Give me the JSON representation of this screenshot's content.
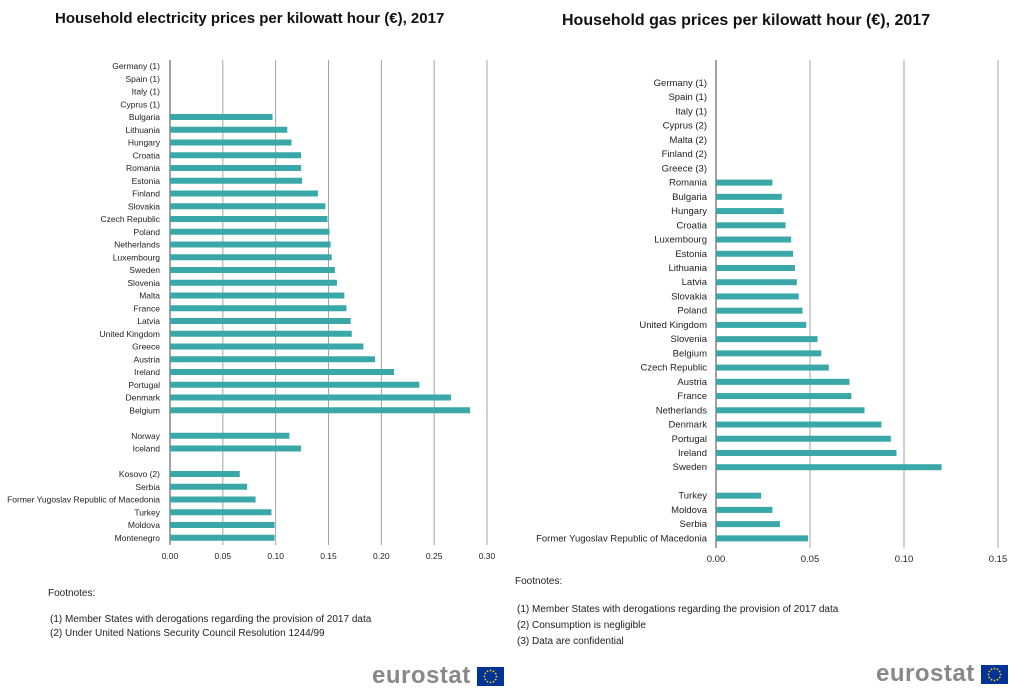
{
  "chart_data": [
    {
      "type": "bar",
      "orientation": "horizontal",
      "title": "Household electricity prices per kilowatt hour (€), 2017",
      "xlabel": "",
      "ylabel": "",
      "xlim": [
        0,
        0.3
      ],
      "ticks": [
        "0.00",
        "0.05",
        "0.10",
        "0.15",
        "0.20",
        "0.25",
        "0.30"
      ],
      "tick_values": [
        0,
        0.05,
        0.1,
        0.15,
        0.2,
        0.25,
        0.3
      ],
      "bar_color": "#3aa8a8",
      "categories": [
        "Germany (1)",
        "Spain (1)",
        "Italy (1)",
        "Cyprus (1)",
        "Bulgaria",
        "Lithuania",
        "Hungary",
        "Croatia",
        "Romania",
        "Estonia",
        "Finland",
        "Slovakia",
        "Czech Republic",
        "Poland",
        "Netherlands",
        "Luxembourg",
        "Sweden",
        "Slovenia",
        "Malta",
        "France",
        "Latvia",
        "United Kingdom",
        "Greece",
        "Austria",
        "Ireland",
        "Portugal",
        "Denmark",
        "Belgium",
        "",
        "Norway",
        "Iceland",
        "",
        "Kosovo (2)",
        "Serbia",
        "Former Yugoslav Republic of Macedonia",
        "Turkey",
        "Moldova",
        "Montenegro"
      ],
      "values": [
        null,
        null,
        null,
        null,
        0.097,
        0.111,
        0.115,
        0.124,
        0.124,
        0.125,
        0.14,
        0.147,
        0.149,
        0.151,
        0.152,
        0.153,
        0.156,
        0.158,
        0.165,
        0.167,
        0.171,
        0.172,
        0.183,
        0.194,
        0.212,
        0.236,
        0.266,
        0.284,
        null,
        0.113,
        0.124,
        null,
        0.066,
        0.073,
        0.081,
        0.096,
        0.099,
        0.099
      ]
    },
    {
      "type": "bar",
      "orientation": "horizontal",
      "title": "Household gas prices per kilowatt hour (€),  2017",
      "xlabel": "",
      "ylabel": "",
      "xlim": [
        0,
        0.15
      ],
      "ticks": [
        "0.00",
        "0.05",
        "0.10",
        "0.15"
      ],
      "tick_values": [
        0,
        0.05,
        0.1,
        0.15
      ],
      "bar_color": "#3aa8a8",
      "categories": [
        "Germany (1)",
        "Spain (1)",
        "Italy (1)",
        "Cyprus (2)",
        "Malta (2)",
        "Finland (2)",
        "Greece (3)",
        "Romania",
        "Bulgaria",
        "Hungary",
        "Croatia",
        "Luxembourg",
        "Estonia",
        "Lithuania",
        "Latvia",
        "Slovakia",
        "Poland",
        "United Kingdom",
        "Slovenia",
        "Belgium",
        "Czech Republic",
        "Austria",
        "France",
        "Netherlands",
        "Denmark",
        "Portugal",
        "Ireland",
        "Sweden",
        "",
        "Turkey",
        "Moldova",
        "Serbia",
        "Former Yugoslav Republic of Macedonia"
      ],
      "values": [
        null,
        null,
        null,
        null,
        null,
        null,
        null,
        0.03,
        0.035,
        0.036,
        0.037,
        0.04,
        0.041,
        0.042,
        0.043,
        0.044,
        0.046,
        0.048,
        0.054,
        0.056,
        0.06,
        0.071,
        0.072,
        0.079,
        0.088,
        0.093,
        0.096,
        0.12,
        null,
        0.024,
        0.03,
        0.034,
        0.049
      ]
    }
  ],
  "footnotes_left": {
    "heading": "Footnotes:",
    "lines": [
      "(1)  Member States with derogations regarding the provision of 2017 data",
      "(2)  Under United Nations Security Council Resolution 1244/99"
    ]
  },
  "footnotes_right": {
    "heading": "Footnotes:",
    "lines": [
      "(1)  Member States with derogations regarding the provision of 2017 data",
      "(2)  Consumption is negligible",
      "(3)  Data are confidential"
    ]
  },
  "logo": {
    "text": "eurostat",
    "flag_blue": "#003399",
    "star_color": "#ffcc00"
  }
}
